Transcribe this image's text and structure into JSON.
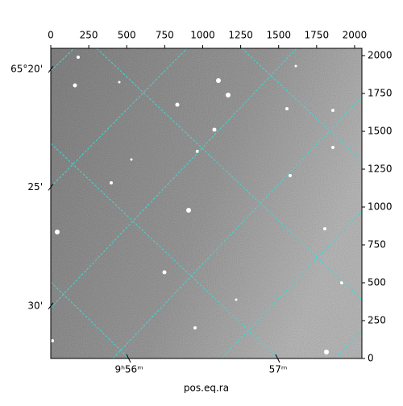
{
  "chart_data": {
    "type": "image",
    "xlabel": "pos.eq.ra",
    "xlim": [
      0,
      2048
    ],
    "ylim": [
      0,
      2048
    ],
    "xticks": [
      0,
      250,
      500,
      750,
      1000,
      1250,
      1500,
      1750,
      2000
    ],
    "yticks": [
      0,
      250,
      500,
      750,
      1000,
      1250,
      1500,
      1750,
      2000
    ],
    "ra_ticks": [
      {
        "value": 515,
        "label": "9ʰ56ᵐ"
      },
      {
        "value": 1496,
        "label": "57ᵐ"
      }
    ],
    "dec_ticks": [
      {
        "value": 1909,
        "label": "65°20'"
      },
      {
        "value": 1131,
        "label": "25'"
      },
      {
        "value": 347,
        "label": "30'"
      }
    ],
    "grid": true,
    "grid_color": "#3fd9d4"
  }
}
